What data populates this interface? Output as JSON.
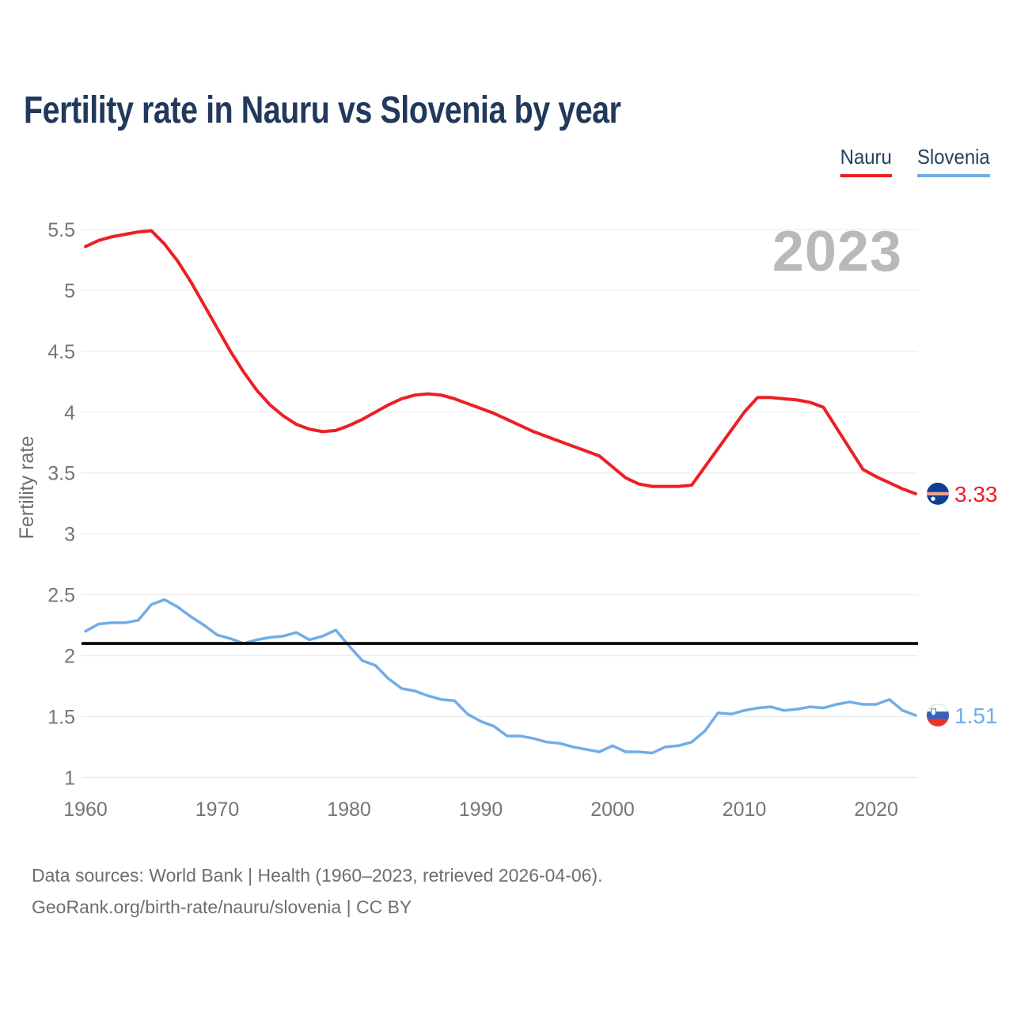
{
  "page": {
    "title": "Fertility rate in Nauru vs Slovenia by year",
    "watermark": "2023",
    "footer": {
      "line1": "Data sources: World Bank | Health (1960–2023, retrieved 2026-04-06).",
      "line2": "GeoRank.org/birth-rate/nauru/slovenia | CC BY"
    }
  },
  "chart_data": {
    "type": "line",
    "title": "Fertility rate in Nauru vs Slovenia by year",
    "xlabel": "",
    "ylabel": "Fertility rate",
    "ylim": [
      1,
      5.5
    ],
    "grid": true,
    "legend_position": "top-right",
    "y_ticks": [
      5.5,
      5,
      4.5,
      4,
      3.5,
      3,
      2.5,
      2,
      1.5,
      1
    ],
    "x_ticks": [
      1960,
      1970,
      1980,
      1990,
      2000,
      2010,
      2020
    ],
    "reference_line": {
      "value": 2.1,
      "color": "#000000"
    },
    "x": [
      1960,
      1961,
      1962,
      1963,
      1964,
      1965,
      1966,
      1967,
      1968,
      1969,
      1970,
      1971,
      1972,
      1973,
      1974,
      1975,
      1976,
      1977,
      1978,
      1979,
      1980,
      1981,
      1982,
      1983,
      1984,
      1985,
      1986,
      1987,
      1988,
      1989,
      1990,
      1991,
      1992,
      1993,
      1994,
      1995,
      1996,
      1997,
      1998,
      1999,
      2000,
      2001,
      2002,
      2003,
      2004,
      2005,
      2006,
      2007,
      2008,
      2009,
      2010,
      2011,
      2012,
      2013,
      2014,
      2015,
      2016,
      2017,
      2018,
      2019,
      2020,
      2021,
      2022,
      2023
    ],
    "series": [
      {
        "name": "Nauru",
        "color": "#ed1f24",
        "flag_icon": "nauru-flag-icon",
        "end_label": "3.33",
        "values": [
          5.36,
          5.41,
          5.44,
          5.46,
          5.48,
          5.49,
          5.38,
          5.24,
          5.07,
          4.88,
          4.69,
          4.5,
          4.33,
          4.18,
          4.06,
          3.97,
          3.9,
          3.86,
          3.84,
          3.85,
          3.89,
          3.94,
          4.0,
          4.06,
          4.11,
          4.14,
          4.15,
          4.14,
          4.11,
          4.07,
          4.03,
          3.99,
          3.94,
          3.89,
          3.84,
          3.8,
          3.76,
          3.72,
          3.68,
          3.64,
          3.55,
          3.46,
          3.41,
          3.39,
          3.39,
          3.39,
          3.4,
          3.55,
          3.7,
          3.85,
          4.0,
          4.12,
          4.12,
          4.11,
          4.1,
          4.08,
          4.04,
          3.87,
          3.7,
          3.53,
          3.47,
          3.42,
          3.37,
          3.33
        ]
      },
      {
        "name": "Slovenia",
        "color": "#71ade6",
        "flag_icon": "slovenia-flag-icon",
        "end_label": "1.51",
        "values": [
          2.2,
          2.26,
          2.27,
          2.27,
          2.29,
          2.42,
          2.46,
          2.4,
          2.32,
          2.25,
          2.17,
          2.14,
          2.1,
          2.13,
          2.15,
          2.16,
          2.19,
          2.13,
          2.16,
          2.21,
          2.08,
          1.96,
          1.92,
          1.81,
          1.73,
          1.71,
          1.67,
          1.64,
          1.63,
          1.52,
          1.46,
          1.42,
          1.34,
          1.34,
          1.32,
          1.29,
          1.28,
          1.25,
          1.23,
          1.21,
          1.26,
          1.21,
          1.21,
          1.2,
          1.25,
          1.26,
          1.29,
          1.38,
          1.53,
          1.52,
          1.55,
          1.57,
          1.58,
          1.55,
          1.56,
          1.58,
          1.57,
          1.6,
          1.62,
          1.6,
          1.6,
          1.64,
          1.55,
          1.51
        ]
      }
    ],
    "colors": {
      "grid": "#ececec",
      "tick_text": "#757575",
      "watermark": "#b9b9b9",
      "title_text": "#21395a",
      "nauru_flag_blue": "#0d3f94",
      "nauru_flag_stripe": "#f2a38c",
      "slovenia_flag_blue": "#3561bd",
      "slovenia_flag_red": "#ec332a"
    }
  }
}
